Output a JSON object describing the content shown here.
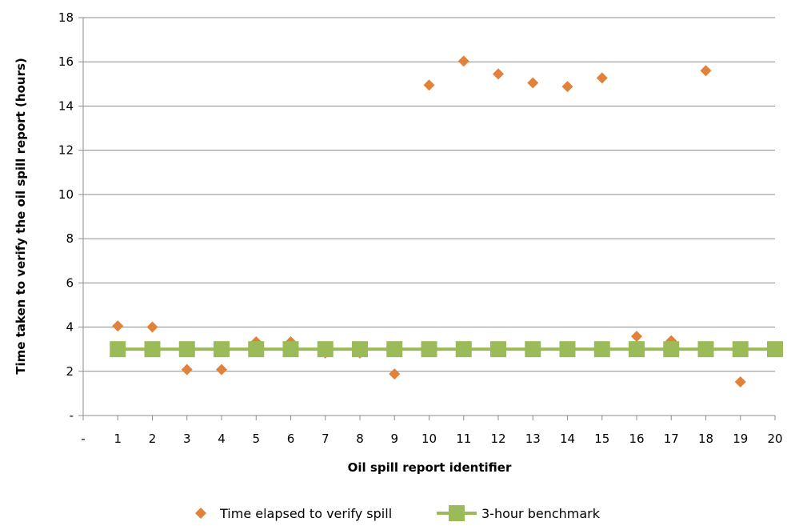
{
  "chart_data": {
    "type": "scatter",
    "xlabel": "Oil spill report identifier",
    "ylabel": "Time taken to verify the oil spill report (hours)",
    "xlim": [
      0,
      20
    ],
    "ylim": [
      0,
      18
    ],
    "x_ticks": [
      "-",
      "1",
      "2",
      "3",
      "4",
      "5",
      "6",
      "7",
      "8",
      "9",
      "10",
      "11",
      "12",
      "13",
      "14",
      "15",
      "16",
      "17",
      "18",
      "19",
      "20"
    ],
    "y_ticks": [
      "-",
      "2",
      "4",
      "6",
      "8",
      "10",
      "12",
      "14",
      "16",
      "18"
    ],
    "grid": "horizontal",
    "legend_position": "bottom",
    "series": [
      {
        "name": "Time elapsed to verify spill",
        "marker": "diamond",
        "color": "#E2823A",
        "x": [
          1,
          2,
          3,
          4,
          5,
          6,
          7,
          8,
          9,
          10,
          11,
          12,
          13,
          14,
          15,
          16,
          17,
          18,
          19,
          20
        ],
        "y": [
          4.05,
          4.0,
          2.08,
          2.08,
          3.33,
          3.33,
          2.83,
          2.83,
          1.88,
          14.95,
          16.03,
          15.45,
          15.05,
          14.88,
          15.27,
          3.58,
          3.38,
          15.6,
          1.52,
          2.92
        ]
      },
      {
        "name": "3-hour benchmark",
        "marker": "square",
        "line": true,
        "color": "#9BBB59",
        "x": [
          1,
          2,
          3,
          4,
          5,
          6,
          7,
          8,
          9,
          10,
          11,
          12,
          13,
          14,
          15,
          16,
          17,
          18,
          19,
          20
        ],
        "y": [
          3,
          3,
          3,
          3,
          3,
          3,
          3,
          3,
          3,
          3,
          3,
          3,
          3,
          3,
          3,
          3,
          3,
          3,
          3,
          3
        ]
      }
    ]
  }
}
